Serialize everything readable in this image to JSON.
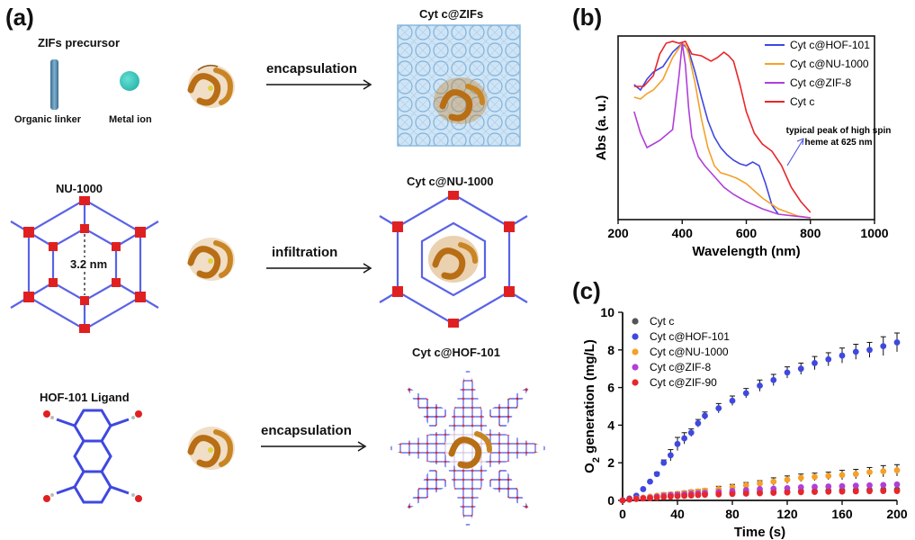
{
  "panels": {
    "a": "(a)",
    "b": "(b)",
    "c": "(c)"
  },
  "scheme": {
    "zifs_precursor": "ZIFs precursor",
    "organic_linker": "Organic linker",
    "metal_ion": "Metal ion",
    "encapsulation_1": "encapsulation",
    "cyt_c_zifs": "Cyt c@ZIFs",
    "nu1000": "NU-1000",
    "pore_size": "3.2 nm",
    "infiltration": "infiltration",
    "cyt_c_nu1000": "Cyt c@NU-1000",
    "hof101_ligand": "HOF-101 Ligand",
    "encapsulation_2": "encapsulation",
    "cyt_c_hof101": "Cyt c@HOF-101"
  },
  "colors": {
    "hof101": "#3f48e0",
    "nu1000": "#f5a028",
    "zif8": "#b03fd8",
    "cytc_line": "#e8262b",
    "cytc_dot": "#555555",
    "zif90": "#e8262b",
    "framework_blue": "#5a63e6",
    "framework_red": "#e02020",
    "protein": "#c07a1e",
    "zif_box": "#a9cdea"
  },
  "chart_data": [
    {
      "id": "b",
      "type": "line",
      "xlabel": "Wavelength (nm)",
      "ylabel": "Abs (a. u.)",
      "xlim": [
        200,
        1000
      ],
      "xticks": [
        "200",
        "400",
        "600",
        "800",
        "1000"
      ],
      "annotation": "typical peak of high spin heme at 625 nm",
      "legend_position": "top-right",
      "series": [
        {
          "name": "Cyt c@HOF-101",
          "color_key": "hof101",
          "x": [
            250,
            270,
            290,
            310,
            340,
            370,
            400,
            420,
            440,
            460,
            480,
            500,
            520,
            540,
            560,
            580,
            600,
            620,
            640,
            660,
            680,
            700
          ],
          "y": [
            0.75,
            0.72,
            0.78,
            0.82,
            0.85,
            0.93,
            0.98,
            0.94,
            0.82,
            0.68,
            0.55,
            0.46,
            0.4,
            0.36,
            0.33,
            0.31,
            0.3,
            0.32,
            0.3,
            0.2,
            0.08,
            0.03
          ]
        },
        {
          "name": "Cyt c@NU-1000",
          "color_key": "nu1000",
          "x": [
            250,
            270,
            290,
            310,
            340,
            370,
            400,
            410,
            420,
            440,
            460,
            480,
            500,
            520,
            540,
            570,
            600,
            650,
            700,
            760,
            800
          ],
          "y": [
            0.68,
            0.67,
            0.7,
            0.72,
            0.78,
            0.9,
            0.98,
            0.97,
            0.92,
            0.76,
            0.56,
            0.4,
            0.3,
            0.26,
            0.25,
            0.23,
            0.2,
            0.12,
            0.06,
            0.02,
            0.01
          ]
        },
        {
          "name": "Cyt c@ZIF-8",
          "color_key": "zif8",
          "x": [
            250,
            270,
            290,
            310,
            330,
            350,
            370,
            390,
            400,
            410,
            420,
            430,
            450,
            470,
            500,
            530,
            560,
            600,
            650,
            700,
            800
          ],
          "y": [
            0.6,
            0.48,
            0.4,
            0.42,
            0.44,
            0.47,
            0.5,
            0.8,
            0.98,
            0.86,
            0.62,
            0.46,
            0.35,
            0.3,
            0.24,
            0.18,
            0.14,
            0.1,
            0.06,
            0.03,
            0.01
          ]
        },
        {
          "name": "Cyt c",
          "color_key": "cytc_line",
          "x": [
            250,
            280,
            310,
            330,
            350,
            370,
            390,
            410,
            430,
            460,
            490,
            510,
            530,
            545,
            560,
            580,
            600,
            625,
            650,
            680,
            710,
            740,
            770,
            800
          ],
          "y": [
            0.74,
            0.74,
            0.8,
            0.92,
            0.98,
            0.99,
            0.98,
            0.99,
            0.92,
            0.91,
            0.88,
            0.9,
            0.93,
            0.91,
            0.88,
            0.75,
            0.6,
            0.48,
            0.42,
            0.38,
            0.3,
            0.18,
            0.1,
            0.04
          ]
        }
      ]
    },
    {
      "id": "c",
      "type": "scatter",
      "xlabel": "Time (s)",
      "ylabel": "O2 generation (mg/L)",
      "ylabel_main": "O",
      "ylabel_sub": "2",
      "ylabel_rest": " generation (mg/L)",
      "xlim": [
        0,
        200
      ],
      "ylim": [
        0,
        10
      ],
      "xticks": [
        "0",
        "40",
        "80",
        "120",
        "160",
        "200"
      ],
      "yticks": [
        "0",
        "2",
        "4",
        "6",
        "8",
        "10"
      ],
      "legend_position": "top-left",
      "x": [
        0,
        5,
        10,
        15,
        20,
        25,
        30,
        35,
        40,
        45,
        50,
        55,
        60,
        70,
        80,
        90,
        100,
        110,
        120,
        130,
        140,
        150,
        160,
        170,
        180,
        190,
        200
      ],
      "series": [
        {
          "name": "Cyt c",
          "color_key": "cytc_dot",
          "y": [
            0,
            0.05,
            0.1,
            0.12,
            0.15,
            0.2,
            0.22,
            0.25,
            0.28,
            0.3,
            0.32,
            0.34,
            0.35,
            0.38,
            0.4,
            0.42,
            0.44,
            0.46,
            0.48,
            0.5,
            0.5,
            0.52,
            0.54,
            0.55,
            0.56,
            0.57,
            0.58
          ]
        },
        {
          "name": "Cyt c@HOF-101",
          "color_key": "hof101",
          "y": [
            0,
            0.1,
            0.25,
            0.6,
            1.0,
            1.4,
            2.0,
            2.4,
            3.0,
            3.3,
            3.6,
            4.1,
            4.5,
            4.9,
            5.3,
            5.7,
            6.1,
            6.4,
            6.8,
            7.0,
            7.3,
            7.5,
            7.7,
            7.9,
            8.0,
            8.2,
            8.4
          ],
          "err": [
            0,
            0,
            0,
            0,
            0,
            0.1,
            0.15,
            0.3,
            0.35,
            0.3,
            0.2,
            0.2,
            0.2,
            0.25,
            0.25,
            0.25,
            0.3,
            0.3,
            0.3,
            0.3,
            0.35,
            0.35,
            0.4,
            0.4,
            0.4,
            0.5,
            0.5
          ]
        },
        {
          "name": "Cyt c@NU-1000",
          "color_key": "nu1000",
          "y": [
            0,
            0.05,
            0.1,
            0.15,
            0.2,
            0.25,
            0.3,
            0.32,
            0.35,
            0.4,
            0.45,
            0.48,
            0.52,
            0.6,
            0.7,
            0.8,
            0.9,
            1.0,
            1.1,
            1.2,
            1.25,
            1.3,
            1.35,
            1.4,
            1.5,
            1.55,
            1.6
          ],
          "err": [
            0,
            0,
            0.05,
            0.05,
            0.05,
            0.05,
            0.1,
            0.1,
            0.1,
            0.1,
            0.1,
            0.1,
            0.1,
            0.15,
            0.15,
            0.15,
            0.15,
            0.2,
            0.2,
            0.2,
            0.2,
            0.2,
            0.25,
            0.25,
            0.25,
            0.3,
            0.3
          ]
        },
        {
          "name": "Cyt c@ZIF-8",
          "color_key": "zif8",
          "y": [
            0,
            0.05,
            0.08,
            0.12,
            0.15,
            0.2,
            0.24,
            0.28,
            0.3,
            0.33,
            0.36,
            0.38,
            0.4,
            0.45,
            0.5,
            0.55,
            0.6,
            0.62,
            0.65,
            0.7,
            0.72,
            0.74,
            0.76,
            0.78,
            0.8,
            0.82,
            0.85
          ]
        },
        {
          "name": "Cyt c@ZIF-90",
          "color_key": "zif90",
          "y": [
            0,
            0.05,
            0.08,
            0.1,
            0.12,
            0.15,
            0.18,
            0.2,
            0.22,
            0.24,
            0.26,
            0.28,
            0.3,
            0.32,
            0.34,
            0.36,
            0.38,
            0.4,
            0.42,
            0.44,
            0.45,
            0.46,
            0.47,
            0.48,
            0.49,
            0.5,
            0.5
          ]
        }
      ]
    }
  ]
}
